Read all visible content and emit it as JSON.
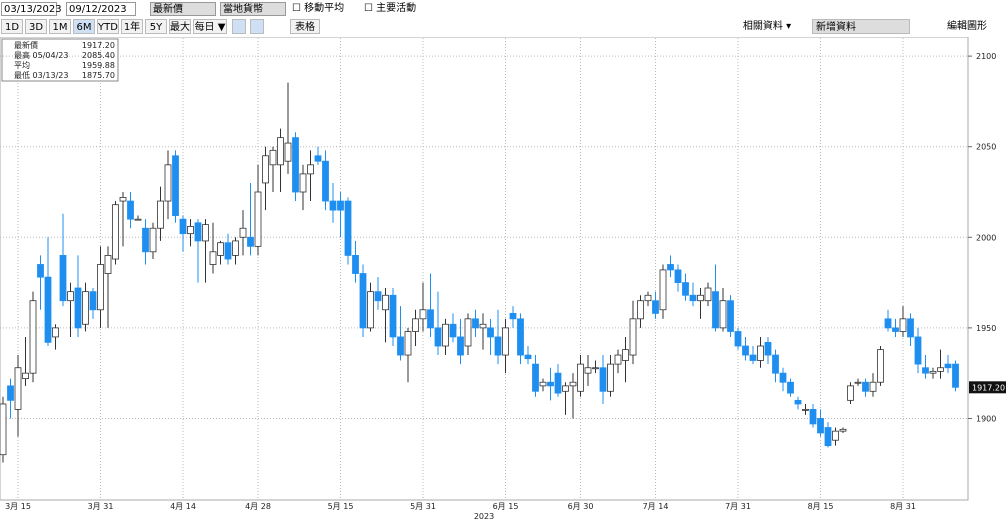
{
  "toolbar": {
    "start_date": "03/13/2023",
    "end_date": "09/12/2023",
    "field": "最新價",
    "currency": "當地貨幣",
    "moving_avg": "移動平均",
    "events": "主要活動",
    "periods": [
      "1D",
      "3D",
      "1M",
      "6M",
      "YTD",
      "1年",
      "5Y",
      "最大"
    ],
    "frequency": "每日 ▼",
    "table": "表格",
    "related": "相關資料 ▾",
    "add_data": "新增資料",
    "edit_chart": "編輯圖形"
  },
  "legend": [
    {
      "name": "最新價",
      "value": "1917.20"
    },
    {
      "name": "最高 05/04/23",
      "value": "2085.40"
    },
    {
      "name": "平均",
      "value": "1959.88"
    },
    {
      "name": "最低 03/13/23",
      "value": "1875.70"
    }
  ],
  "chart_data": {
    "type": "candlestick",
    "up_color": "#ffffff",
    "down_color": "#1e8ff0",
    "grid": true,
    "last_label": "1917.20",
    "x_axis_title": "2023",
    "ylim": [
      1855,
      2110
    ],
    "yticks": [
      1900,
      1950,
      2000,
      2050,
      2100
    ],
    "categories": [
      null,
      null,
      "3月 15",
      null,
      null,
      null,
      null,
      null,
      null,
      null,
      null,
      null,
      null,
      "3月 31",
      null,
      null,
      null,
      null,
      null,
      null,
      null,
      null,
      null,
      null,
      "4月 14",
      null,
      null,
      null,
      null,
      null,
      null,
      null,
      null,
      null,
      "4月 28",
      null,
      null,
      null,
      null,
      null,
      null,
      null,
      null,
      null,
      null,
      "5月 15",
      null,
      null,
      null,
      null,
      null,
      null,
      null,
      null,
      null,
      null,
      "5月 31",
      null,
      null,
      null,
      null,
      null,
      null,
      null,
      null,
      null,
      null,
      "6月 15",
      null,
      null,
      null,
      null,
      null,
      null,
      null,
      null,
      null,
      "6月 30",
      null,
      null,
      null,
      null,
      null,
      null,
      null,
      null,
      null,
      "7月 14",
      null,
      null,
      null,
      null,
      null,
      null,
      null,
      null,
      null,
      null,
      "7月 31",
      null,
      null,
      null,
      null,
      null,
      null,
      null,
      null,
      null,
      null,
      "8月 15",
      null,
      null,
      null,
      null,
      null,
      null,
      null,
      null,
      null,
      null,
      "8月 31",
      null,
      null,
      null,
      null,
      null,
      null,
      null
    ],
    "ohlc": [
      [
        1880,
        1912,
        1875.7,
        1908
      ],
      [
        1918,
        1922,
        1900,
        1910
      ],
      [
        1905,
        1935,
        1890,
        1928
      ],
      [
        1922,
        1945,
        1918,
        1925
      ],
      [
        1925,
        1970,
        1920,
        1965
      ],
      [
        1985,
        1990,
        1960,
        1978
      ],
      [
        1978,
        2000,
        1940,
        1942
      ],
      [
        1945,
        1952,
        1938,
        1950
      ],
      [
        1990,
        2013,
        1962,
        1965
      ],
      [
        1965,
        1975,
        1945,
        1970
      ],
      [
        1972,
        1990,
        1945,
        1950
      ],
      [
        1952,
        1975,
        1948,
        1970
      ],
      [
        1970,
        1972,
        1955,
        1960
      ],
      [
        1960,
        1995,
        1950,
        1985
      ],
      [
        1980,
        1995,
        1950,
        1990
      ],
      [
        1988,
        2020,
        1985,
        2018
      ],
      [
        2020,
        2025,
        1995,
        2022
      ],
      [
        2020,
        2025,
        2005,
        2010
      ],
      [
        2010,
        2012,
        2010,
        2010
      ],
      [
        2005,
        2010,
        1985,
        1992
      ],
      [
        1992,
        2008,
        1988,
        2005
      ],
      [
        2005,
        2028,
        1998,
        2020
      ],
      [
        2020,
        2048,
        2010,
        2040
      ],
      [
        2045,
        2048,
        2008,
        2012
      ],
      [
        2010,
        2012,
        1992,
        2002
      ],
      [
        2002,
        2010,
        1995,
        2006
      ],
      [
        2008,
        2010,
        1975,
        1998
      ],
      [
        1998,
        2010,
        1975,
        2007
      ],
      [
        1985,
        2008,
        1980,
        1992
      ],
      [
        1990,
        1998,
        1985,
        1997
      ],
      [
        1997,
        2002,
        1985,
        1988
      ],
      [
        1990,
        2000,
        1985,
        1998
      ],
      [
        2000,
        2015,
        1990,
        2005
      ],
      [
        2000,
        2030,
        1990,
        1995
      ],
      [
        1995,
        2040,
        1990,
        2025
      ],
      [
        2030,
        2050,
        2015,
        2045
      ],
      [
        2040,
        2050,
        2025,
        2048
      ],
      [
        2040,
        2060,
        2025,
        2055
      ],
      [
        2042,
        2085.4,
        2035,
        2052
      ],
      [
        2055,
        2058,
        2020,
        2025
      ],
      [
        2025,
        2040,
        2015,
        2035
      ],
      [
        2035,
        2048,
        2020,
        2040
      ],
      [
        2045,
        2050,
        2040,
        2042
      ],
      [
        2042,
        2048,
        2015,
        2020
      ],
      [
        2020,
        2030,
        2008,
        2015
      ],
      [
        2020,
        2025,
        2000,
        2015
      ],
      [
        2020,
        2022,
        1985,
        1990
      ],
      [
        1990,
        1998,
        1975,
        1980
      ],
      [
        1980,
        1985,
        1945,
        1950
      ],
      [
        1950,
        1975,
        1948,
        1970
      ],
      [
        1970,
        1978,
        1960,
        1965
      ],
      [
        1960,
        1972,
        1942,
        1968
      ],
      [
        1968,
        1972,
        1940,
        1945
      ],
      [
        1945,
        1962,
        1932,
        1935
      ],
      [
        1935,
        1950,
        1920,
        1948
      ],
      [
        1948,
        1960,
        1940,
        1955
      ],
      [
        1955,
        1975,
        1948,
        1960
      ],
      [
        1960,
        1980,
        1945,
        1950
      ],
      [
        1950,
        1970,
        1935,
        1940
      ],
      [
        1940,
        1955,
        1935,
        1952
      ],
      [
        1952,
        1958,
        1942,
        1945
      ],
      [
        1945,
        1955,
        1930,
        1935
      ],
      [
        1940,
        1958,
        1935,
        1955
      ],
      [
        1955,
        1960,
        1945,
        1950
      ],
      [
        1950,
        1958,
        1938,
        1952
      ],
      [
        1950,
        1955,
        1935,
        1945
      ],
      [
        1945,
        1960,
        1930,
        1935
      ],
      [
        1935,
        1955,
        1925,
        1950
      ],
      [
        1958,
        1962,
        1950,
        1955
      ],
      [
        1955,
        1958,
        1930,
        1935
      ],
      [
        1935,
        1940,
        1930,
        1933
      ],
      [
        1930,
        1935,
        1912,
        1915
      ],
      [
        1918,
        1922,
        1915,
        1920
      ],
      [
        1920,
        1928,
        1910,
        1918
      ],
      [
        1925,
        1930,
        1912,
        1914
      ],
      [
        1915,
        1920,
        1902,
        1918
      ],
      [
        1918,
        1925,
        1900,
        1920
      ],
      [
        1915,
        1935,
        1912,
        1930
      ],
      [
        1925,
        1935,
        1918,
        1928
      ],
      [
        1928,
        1932,
        1925,
        1928
      ],
      [
        1928,
        1935,
        1908,
        1915
      ],
      [
        1915,
        1935,
        1912,
        1930
      ],
      [
        1930,
        1938,
        1925,
        1935
      ],
      [
        1932,
        1945,
        1920,
        1938
      ],
      [
        1935,
        1965,
        1930,
        1955
      ],
      [
        1955,
        1968,
        1950,
        1965
      ],
      [
        1965,
        1970,
        1962,
        1968
      ],
      [
        1965,
        1970,
        1955,
        1958
      ],
      [
        1960,
        1985,
        1955,
        1982
      ],
      [
        1985,
        1990,
        1978,
        1982
      ],
      [
        1982,
        1985,
        1970,
        1975
      ],
      [
        1975,
        1980,
        1965,
        1968
      ],
      [
        1968,
        1975,
        1962,
        1965
      ],
      [
        1965,
        1972,
        1955,
        1968
      ],
      [
        1965,
        1975,
        1962,
        1972
      ],
      [
        1970,
        1985,
        1948,
        1950
      ],
      [
        1950,
        1972,
        1948,
        1965
      ],
      [
        1965,
        1968,
        1945,
        1948
      ],
      [
        1948,
        1950,
        1938,
        1940
      ],
      [
        1940,
        1945,
        1932,
        1935
      ],
      [
        1935,
        1940,
        1930,
        1932
      ],
      [
        1932,
        1945,
        1928,
        1940
      ],
      [
        1942,
        1945,
        1930,
        1935
      ],
      [
        1935,
        1938,
        1920,
        1925
      ],
      [
        1925,
        1928,
        1915,
        1920
      ],
      [
        1920,
        1922,
        1912,
        1914
      ],
      [
        1910,
        1912,
        1905,
        1908
      ],
      [
        1905,
        1908,
        1902,
        1905
      ],
      [
        1905,
        1908,
        1895,
        1897
      ],
      [
        1900,
        1905,
        1890,
        1892
      ],
      [
        1895,
        1898,
        1884,
        1885
      ],
      [
        1888,
        1895,
        1885,
        1893
      ],
      [
        1893,
        1895,
        1892,
        1894
      ],
      [
        1910,
        1920,
        1908,
        1918
      ],
      [
        1920,
        1922,
        1918,
        1920
      ],
      [
        1920,
        1922,
        1912,
        1915
      ],
      [
        1915,
        1925,
        1912,
        1920
      ],
      [
        1920,
        1940,
        1918,
        1938
      ],
      [
        1955,
        1960,
        1948,
        1950
      ],
      [
        1950,
        1955,
        1945,
        1948
      ],
      [
        1948,
        1962,
        1945,
        1955
      ],
      [
        1955,
        1958,
        1940,
        1945
      ],
      [
        1945,
        1950,
        1925,
        1930
      ],
      [
        1928,
        1935,
        1922,
        1925
      ],
      [
        1925,
        1928,
        1922,
        1926
      ],
      [
        1926,
        1938,
        1922,
        1928
      ],
      [
        1930,
        1935,
        1925,
        1928
      ],
      [
        1930,
        1932,
        1915,
        1917.2
      ]
    ]
  }
}
